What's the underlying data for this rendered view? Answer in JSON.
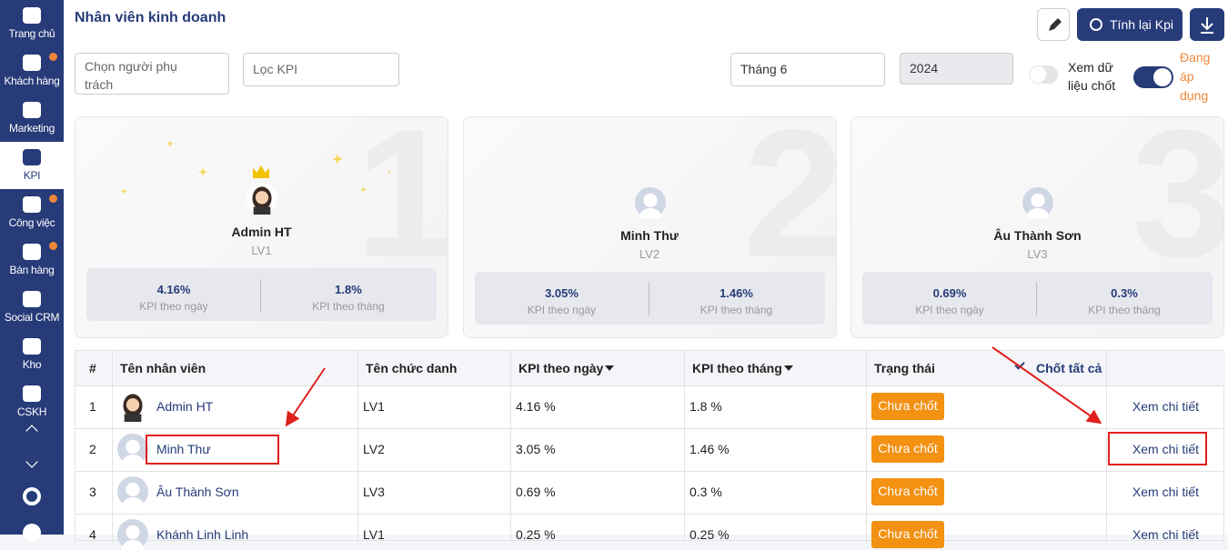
{
  "sidebar": [
    {
      "label": "Trang chủ"
    },
    {
      "label": "Khách hàng"
    },
    {
      "label": "Marketing"
    },
    {
      "label": "KPI"
    },
    {
      "label": "Công việc"
    },
    {
      "label": "Bán hàng"
    },
    {
      "label": "Social CRM"
    },
    {
      "label": "Kho"
    },
    {
      "label": "CSKH"
    }
  ],
  "header": {
    "title": "Nhân viên kinh doanh",
    "recalc_button": "Tính lại Kpi"
  },
  "filters": {
    "assignee": "Chọn người phụ trách",
    "kpi": "Lọc KPI",
    "month": "Tháng 6",
    "year": "2024",
    "view_locked": "Xem dữ liệu chốt",
    "applying": "Đang áp dụng"
  },
  "cards": [
    {
      "rank": "1",
      "name": "Admin HT",
      "level": "LV1",
      "daily": "4.16%",
      "daily_label": "KPI theo ngày",
      "monthly": "1.8%",
      "monthly_label": "KPI theo tháng"
    },
    {
      "rank": "2",
      "name": "Minh Thư",
      "level": "LV2",
      "daily": "3.05%",
      "daily_label": "KPI theo ngày",
      "monthly": "1.46%",
      "monthly_label": "KPI theo tháng"
    },
    {
      "rank": "3",
      "name": "Âu Thành Sơn",
      "level": "LV3",
      "daily": "0.69%",
      "daily_label": "KPI theo ngày",
      "monthly": "0.3%",
      "monthly_label": "KPI theo tháng"
    }
  ],
  "table": {
    "columns": [
      "#",
      "Tên nhân viên",
      "Tên chức danh",
      "KPI theo ngày",
      "KPI theo tháng",
      "Trạng thái"
    ],
    "lock_all": "Chốt tất cả",
    "rows": [
      [
        "1",
        "Admin HT",
        "LV1",
        "4.16 %",
        "1.8 %",
        "Chưa chốt",
        "Xem chi tiết"
      ],
      [
        "2",
        "Minh Thư",
        "LV2",
        "3.05 %",
        "1.46 %",
        "Chưa chốt",
        "Xem chi tiết"
      ],
      [
        "3",
        "Âu Thành Sơn",
        "LV3",
        "0.69 %",
        "0.3 %",
        "Chưa chốt",
        "Xem chi tiết"
      ],
      [
        "4",
        "Khánh Linh Linh",
        "LV1",
        "0.25 %",
        "0.25 %",
        "Chưa chốt",
        "Xem chi tiết"
      ]
    ]
  }
}
